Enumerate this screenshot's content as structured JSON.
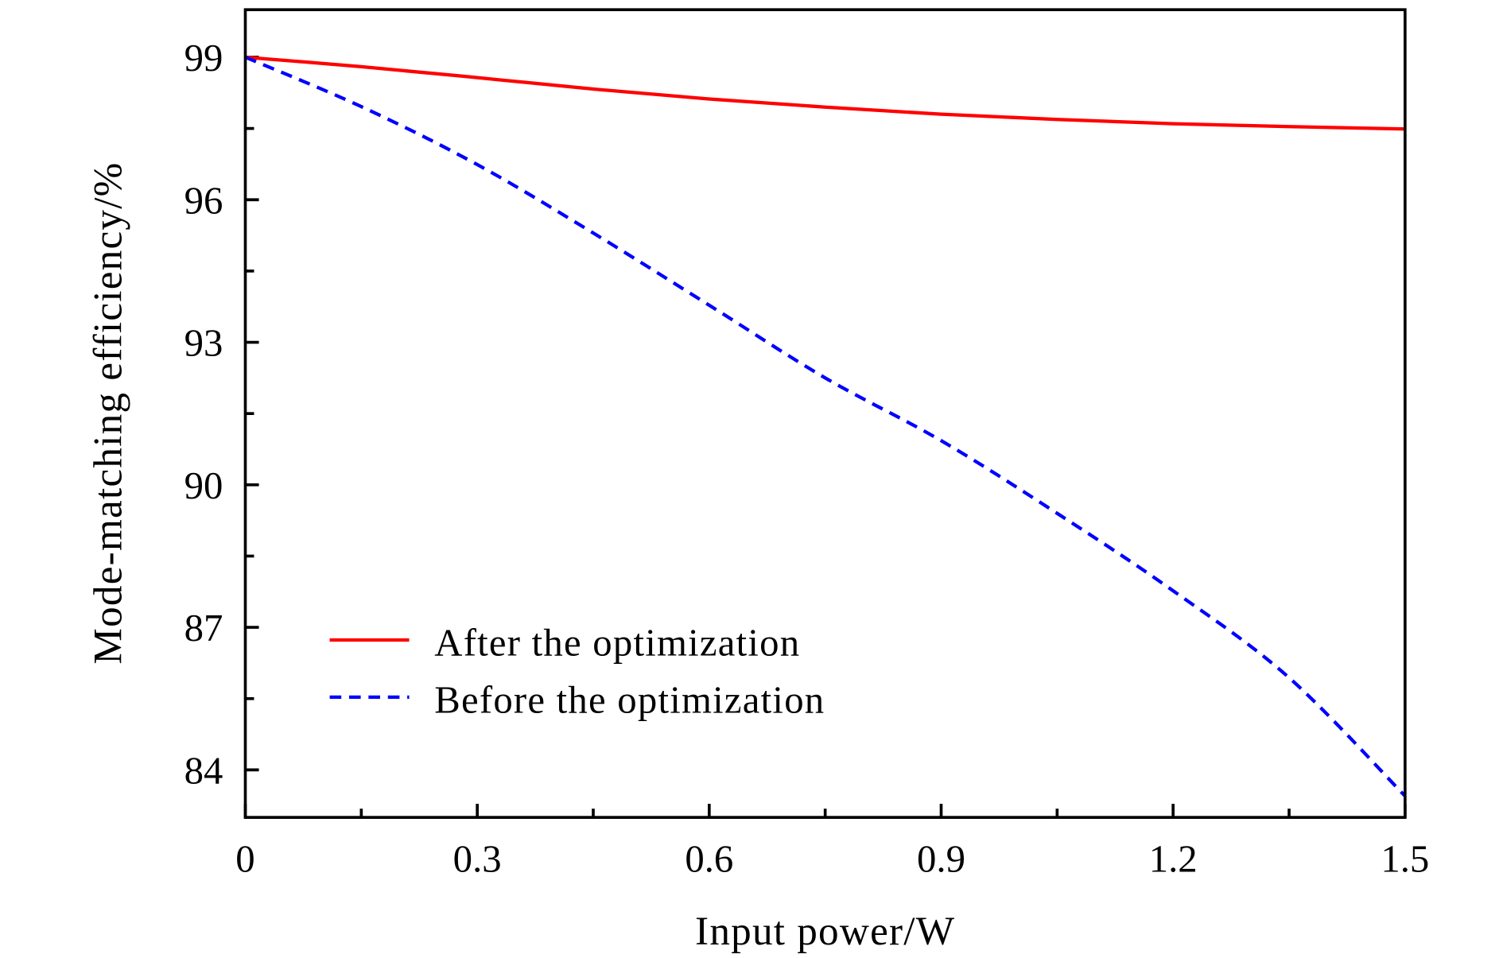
{
  "chart_data": {
    "type": "line",
    "title": "",
    "xlabel": "Input power/W",
    "ylabel": "Mode-matching efficiency/%",
    "xlim": [
      0,
      1.5
    ],
    "ylim": [
      83,
      100
    ],
    "xticks": [
      0,
      0.3,
      0.6,
      0.9,
      1.2,
      1.5
    ],
    "xtick_labels": [
      "0",
      "0.3",
      "0.6",
      "0.9",
      "1.2",
      "1.5"
    ],
    "yticks": [
      84,
      87,
      90,
      93,
      96,
      99
    ],
    "ytick_labels": [
      "84",
      "87",
      "90",
      "93",
      "96",
      "99"
    ],
    "grid": false,
    "legend_position": "bottom-left",
    "x": [
      0,
      0.15,
      0.3,
      0.45,
      0.6,
      0.75,
      0.9,
      1.05,
      1.2,
      1.35,
      1.5
    ],
    "series": [
      {
        "name": "After the optimization",
        "color": "#ff0000",
        "style": "solid",
        "values": [
          99.0,
          98.8,
          98.57,
          98.33,
          98.12,
          97.95,
          97.8,
          97.69,
          97.6,
          97.54,
          97.49
        ]
      },
      {
        "name": "Before the optimization",
        "color": "#0000ff",
        "style": "dashed",
        "values": [
          99.0,
          97.96,
          96.74,
          95.3,
          93.78,
          92.25,
          90.93,
          89.4,
          87.77,
          85.94,
          83.45
        ]
      }
    ]
  }
}
